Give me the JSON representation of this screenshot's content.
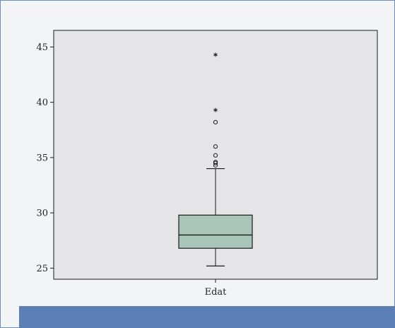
{
  "chart_data": {
    "type": "boxplot",
    "title": "",
    "xlabel": "",
    "ylabel": "",
    "ylim": [
      24,
      46.5
    ],
    "yticks": [
      25,
      30,
      35,
      40,
      45
    ],
    "categories": [
      "Edat"
    ],
    "boxes": [
      {
        "category": "Edat",
        "whisker_low": 25.2,
        "q1": 26.8,
        "median": 28.0,
        "q3": 29.8,
        "whisker_high": 34.0,
        "outliers": [
          34.3,
          34.5,
          34.6,
          35.2,
          36.0,
          38.2
        ],
        "extremes": [
          39.3,
          44.3
        ]
      }
    ],
    "grid": false,
    "legend": "none",
    "colors": {
      "box_fill": "#a8c5b8",
      "plot_background": "#e5e5e7",
      "frame_border": "#6f8db5",
      "bottom_band": "#5b7fb5"
    }
  }
}
